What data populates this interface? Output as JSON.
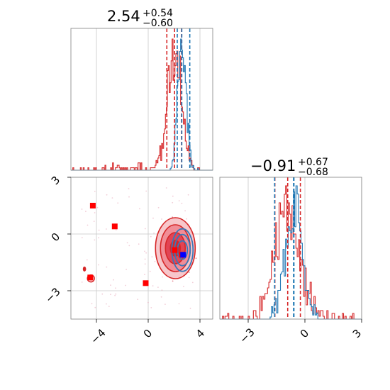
{
  "chart_data": {
    "type": "corner",
    "grid": true,
    "panels": [
      {
        "id": "hist-param-1",
        "type": "histogram",
        "title": {
          "value": "2.54",
          "plus": "+0.54",
          "minus": "−0.60"
        },
        "xlim": [
          -5.5,
          5.5
        ],
        "series": [
          {
            "color": "#d62728",
            "median": 2.54,
            "quantiles": [
              1.94,
              3.08
            ]
          },
          {
            "color": "#1f77b4",
            "median": 3.1,
            "quantiles": [
              2.75,
              3.72
            ]
          }
        ]
      },
      {
        "id": "hist-param-2",
        "type": "histogram",
        "title": {
          "value": "−0.91",
          "plus": "+0.67",
          "minus": "−0.68"
        },
        "xlim": [
          -4.5,
          3.0
        ],
        "xticks": [
          "−3",
          "0",
          "3"
        ],
        "series": [
          {
            "color": "#d62728",
            "median": -0.91,
            "quantiles": [
              -1.59,
              -0.24
            ]
          },
          {
            "color": "#1f77b4",
            "median": -0.6,
            "quantiles": [
              -1.6,
              -0.58
            ]
          }
        ]
      },
      {
        "id": "joint-param-1-2",
        "type": "contour",
        "xlim": [
          -5.5,
          5.5
        ],
        "ylim": [
          -4.5,
          3.0
        ],
        "xticks": [
          "−4",
          "0",
          "4"
        ],
        "yticks": [
          "3",
          "0",
          "−3"
        ],
        "red_markers": [
          {
            "x": -3.8,
            "y": 1.5
          },
          {
            "x": -2.1,
            "y": 0.4
          },
          {
            "x": -4.0,
            "y": -2.3
          },
          {
            "x": 0.3,
            "y": -2.6
          },
          {
            "x": 2.55,
            "y": -0.85
          },
          {
            "x": 3.1,
            "y": -1.1
          }
        ],
        "blue_markers": [
          {
            "x": 3.2,
            "y": -1.1
          }
        ]
      }
    ]
  }
}
